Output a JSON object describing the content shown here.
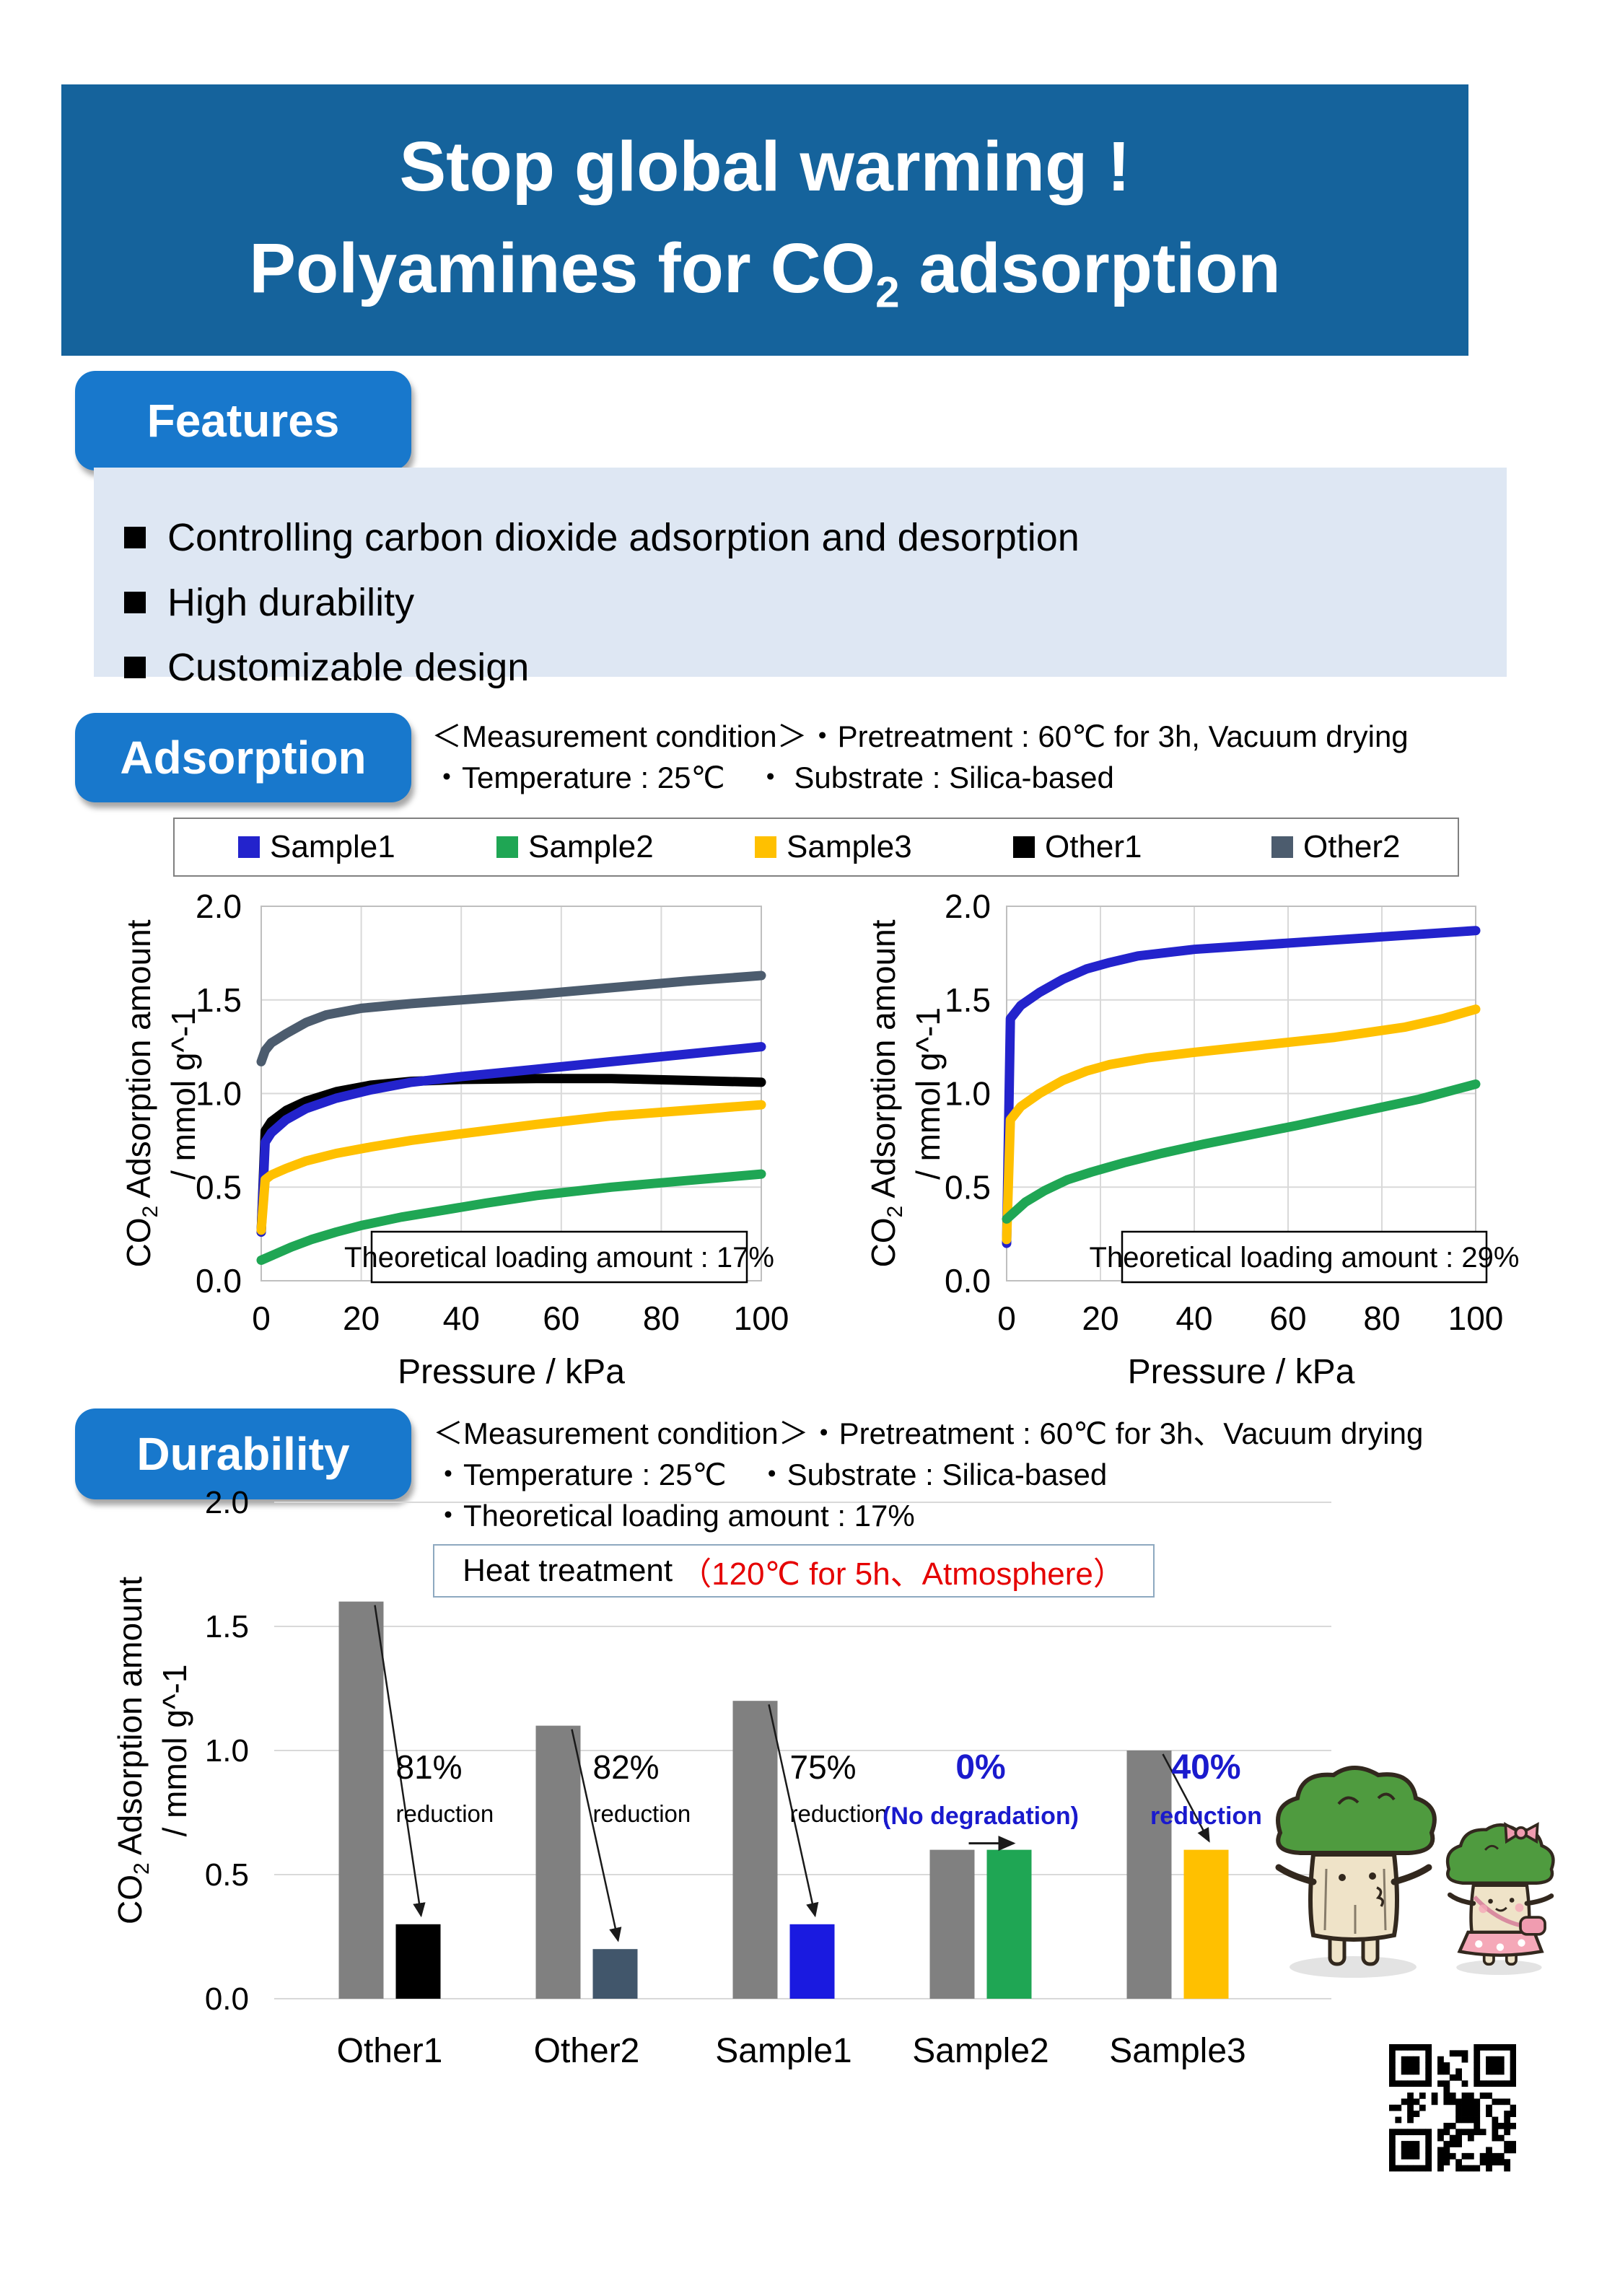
{
  "colors": {
    "banner_bg": "#15639C",
    "badge_bg": "#1878CC",
    "features_bg": "#DEE7F3",
    "red_text": "#E50000",
    "emphasis_blue": "#1A1ACD",
    "grid": "#D9D9D9",
    "plot_border": "#BFBFBF",
    "gray_bar": "#808080"
  },
  "title": {
    "line1": "Stop global warming !",
    "line2_prefix": "Polyamines for CO",
    "line2_sub": "2",
    "line2_suffix": " adsorption"
  },
  "features": {
    "label": "Features",
    "items": [
      "Controlling carbon dioxide adsorption and desorption",
      "High durability",
      "Customizable design"
    ]
  },
  "adsorption": {
    "label": "Adsorption",
    "conditions": [
      "＜Measurement condition＞・Pretreatment : 60℃ for 3h, Vacuum drying",
      "・Temperature : 25℃　・ Substrate :  Silica-based"
    ],
    "legend": [
      {
        "name": "Sample1",
        "color": "#2323CC"
      },
      {
        "name": "Sample2",
        "color": "#1FA654"
      },
      {
        "name": "Sample3",
        "color": "#FFC000"
      },
      {
        "name": "Other1",
        "color": "#000000"
      },
      {
        "name": "Other2",
        "color": "#4C5C6E"
      }
    ]
  },
  "durability": {
    "label": "Durability",
    "conditions": [
      "＜Measurement condition＞・Pretreatment : 60℃ for 3h、Vacuum drying",
      "・Temperature : 25℃　・Substrate : Silica-based",
      "・Theoretical loading amount : 17%"
    ],
    "heat_box": {
      "black": "Heat treatment",
      "red": "（120℃ for 5h、Atmosphere）"
    }
  },
  "chart_data": [
    {
      "id": "adsorption_17",
      "type": "line",
      "note": "Theoretical loading amount : 17%",
      "xlabel": "Pressure / kPa",
      "ylabel_lines": [
        [
          {
            "t": "CO"
          },
          {
            "t": "2",
            "sub": true
          },
          {
            "t": " Adsorption amount"
          }
        ],
        [
          {
            "t": "/ mmol g^-1"
          }
        ]
      ],
      "xlim": [
        0,
        100
      ],
      "ylim": [
        0,
        2
      ],
      "xticks": [
        {
          "v": 0,
          "l": "0"
        },
        {
          "v": 20,
          "l": "20"
        },
        {
          "v": 40,
          "l": "40"
        },
        {
          "v": 60,
          "l": "60"
        },
        {
          "v": 80,
          "l": "80"
        },
        {
          "v": 100,
          "l": "100"
        }
      ],
      "yticks": [
        {
          "v": 0,
          "l": "0.0"
        },
        {
          "v": 0.5,
          "l": "0.5"
        },
        {
          "v": 1,
          "l": "1.0"
        },
        {
          "v": 1.5,
          "l": "1.5"
        },
        {
          "v": 2,
          "l": "2.0"
        }
      ],
      "grid": true,
      "series": [
        {
          "name": "Other2",
          "color": "#4C5C6E",
          "points": [
            [
              0,
              1.17
            ],
            [
              0.8,
              1.23
            ],
            [
              2,
              1.27
            ],
            [
              5,
              1.32
            ],
            [
              9,
              1.38
            ],
            [
              13,
              1.42
            ],
            [
              20,
              1.455
            ],
            [
              30,
              1.48
            ],
            [
              40,
              1.5
            ],
            [
              55,
              1.53
            ],
            [
              70,
              1.565
            ],
            [
              85,
              1.6
            ],
            [
              100,
              1.63
            ]
          ]
        },
        {
          "name": "Other1",
          "color": "#000000",
          "points": [
            [
              0,
              0.26
            ],
            [
              0.8,
              0.8
            ],
            [
              2,
              0.85
            ],
            [
              5,
              0.91
            ],
            [
              9,
              0.96
            ],
            [
              15,
              1.01
            ],
            [
              22,
              1.045
            ],
            [
              30,
              1.065
            ],
            [
              40,
              1.075
            ],
            [
              55,
              1.08
            ],
            [
              70,
              1.08
            ],
            [
              85,
              1.07
            ],
            [
              100,
              1.06
            ]
          ]
        },
        {
          "name": "Sample1",
          "color": "#2323CC",
          "points": [
            [
              0,
              0.26
            ],
            [
              0.8,
              0.74
            ],
            [
              2,
              0.79
            ],
            [
              5,
              0.86
            ],
            [
              9,
              0.92
            ],
            [
              15,
              0.975
            ],
            [
              22,
              1.02
            ],
            [
              30,
              1.06
            ],
            [
              40,
              1.09
            ],
            [
              55,
              1.13
            ],
            [
              70,
              1.17
            ],
            [
              85,
              1.21
            ],
            [
              100,
              1.25
            ]
          ]
        },
        {
          "name": "Sample3",
          "color": "#FFC000",
          "points": [
            [
              0,
              0.27
            ],
            [
              0.8,
              0.54
            ],
            [
              2,
              0.565
            ],
            [
              5,
              0.6
            ],
            [
              9,
              0.64
            ],
            [
              15,
              0.68
            ],
            [
              22,
              0.715
            ],
            [
              30,
              0.75
            ],
            [
              40,
              0.785
            ],
            [
              55,
              0.835
            ],
            [
              70,
              0.88
            ],
            [
              85,
              0.91
            ],
            [
              100,
              0.94
            ]
          ]
        },
        {
          "name": "Sample2",
          "color": "#1FA654",
          "points": [
            [
              0,
              0.11
            ],
            [
              3,
              0.145
            ],
            [
              6,
              0.18
            ],
            [
              10,
              0.22
            ],
            [
              15,
              0.26
            ],
            [
              20,
              0.295
            ],
            [
              28,
              0.34
            ],
            [
              36,
              0.375
            ],
            [
              45,
              0.415
            ],
            [
              55,
              0.455
            ],
            [
              70,
              0.5
            ],
            [
              85,
              0.535
            ],
            [
              100,
              0.57
            ]
          ]
        }
      ]
    },
    {
      "id": "adsorption_29",
      "type": "line",
      "note": "Theoretical loading amount : 29%",
      "xlabel": "Pressure / kPa",
      "ylabel_lines": [
        [
          {
            "t": "CO"
          },
          {
            "t": "2",
            "sub": true
          },
          {
            "t": " Adsorption amount"
          }
        ],
        [
          {
            "t": "/ mmol g^-1"
          }
        ]
      ],
      "xlim": [
        0,
        100
      ],
      "ylim": [
        0,
        2
      ],
      "xticks": [
        {
          "v": 0,
          "l": "0"
        },
        {
          "v": 20,
          "l": "20"
        },
        {
          "v": 40,
          "l": "40"
        },
        {
          "v": 60,
          "l": "60"
        },
        {
          "v": 80,
          "l": "80"
        },
        {
          "v": 100,
          "l": "100"
        }
      ],
      "yticks": [
        {
          "v": 0,
          "l": "0.0"
        },
        {
          "v": 0.5,
          "l": "0.5"
        },
        {
          "v": 1,
          "l": "1.0"
        },
        {
          "v": 1.5,
          "l": "1.5"
        },
        {
          "v": 2,
          "l": "2.0"
        }
      ],
      "grid": true,
      "series": [
        {
          "name": "Sample1",
          "color": "#2323CC",
          "points": [
            [
              0,
              0.2
            ],
            [
              0.8,
              1.4
            ],
            [
              3,
              1.47
            ],
            [
              7,
              1.54
            ],
            [
              12,
              1.61
            ],
            [
              17,
              1.665
            ],
            [
              22,
              1.7
            ],
            [
              28,
              1.735
            ],
            [
              40,
              1.77
            ],
            [
              55,
              1.795
            ],
            [
              70,
              1.82
            ],
            [
              85,
              1.845
            ],
            [
              100,
              1.87
            ]
          ]
        },
        {
          "name": "Sample3",
          "color": "#FFC000",
          "points": [
            [
              0,
              0.22
            ],
            [
              0.8,
              0.86
            ],
            [
              3,
              0.93
            ],
            [
              7,
              1.0
            ],
            [
              12,
              1.07
            ],
            [
              17,
              1.12
            ],
            [
              22,
              1.155
            ],
            [
              30,
              1.19
            ],
            [
              40,
              1.22
            ],
            [
              55,
              1.26
            ],
            [
              70,
              1.3
            ],
            [
              85,
              1.355
            ],
            [
              93,
              1.4
            ],
            [
              100,
              1.45
            ]
          ]
        },
        {
          "name": "Sample2",
          "color": "#1FA654",
          "points": [
            [
              0,
              0.33
            ],
            [
              4,
              0.42
            ],
            [
              8,
              0.48
            ],
            [
              13,
              0.54
            ],
            [
              18,
              0.58
            ],
            [
              25,
              0.63
            ],
            [
              33,
              0.68
            ],
            [
              42,
              0.73
            ],
            [
              52,
              0.78
            ],
            [
              62,
              0.83
            ],
            [
              75,
              0.9
            ],
            [
              88,
              0.97
            ],
            [
              100,
              1.05
            ]
          ]
        }
      ]
    },
    {
      "id": "durability",
      "type": "bar",
      "xlabel": "",
      "ylabel_lines": [
        [
          {
            "t": "CO"
          },
          {
            "t": "2",
            "sub": true
          },
          {
            "t": " Adsorption amount"
          }
        ],
        [
          {
            "t": "/ mmol g^-1"
          }
        ]
      ],
      "ylim": [
        0,
        2
      ],
      "yticks": [
        {
          "v": 0,
          "l": "0.0"
        },
        {
          "v": 0.5,
          "l": "0.5"
        },
        {
          "v": 1,
          "l": "1.0"
        },
        {
          "v": 1.5,
          "l": "1.5"
        },
        {
          "v": 2,
          "l": "2.0"
        }
      ],
      "before_color": "#808080",
      "categories": [
        "Other1",
        "Other2",
        "Sample1",
        "Sample2",
        "Sample3"
      ],
      "bars": [
        {
          "category": "Other1",
          "before": 1.6,
          "after": 0.3,
          "after_color": "#000000",
          "annotation": {
            "pct": "81%",
            "sub": "reduction",
            "emphasis": false
          }
        },
        {
          "category": "Other2",
          "before": 1.1,
          "after": 0.2,
          "after_color": "#41566B",
          "annotation": {
            "pct": "82%",
            "sub": "reduction",
            "emphasis": false
          }
        },
        {
          "category": "Sample1",
          "before": 1.2,
          "after": 0.3,
          "after_color": "#1A1AE0",
          "annotation": {
            "pct": "75%",
            "sub": "reduction",
            "emphasis": false
          }
        },
        {
          "category": "Sample2",
          "before": 0.6,
          "after": 0.6,
          "after_color": "#1FA654",
          "annotation": {
            "pct": "0%",
            "sub": "(No degradation)",
            "emphasis": true
          }
        },
        {
          "category": "Sample3",
          "before": 1.0,
          "after": 0.6,
          "after_color": "#FFC000",
          "annotation": {
            "pct": "40%",
            "sub": "reduction",
            "emphasis": true
          }
        }
      ]
    }
  ]
}
